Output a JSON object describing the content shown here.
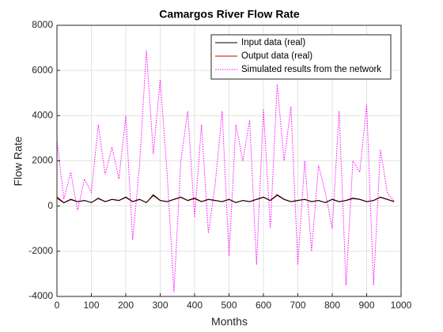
{
  "chart_data": {
    "type": "line",
    "title": "Camargos River Flow Rate",
    "xlabel": "Months",
    "ylabel": "Flow Rate",
    "x": [
      0,
      20,
      40,
      60,
      80,
      100,
      120,
      140,
      160,
      180,
      200,
      220,
      240,
      260,
      280,
      300,
      320,
      340,
      360,
      380,
      400,
      420,
      440,
      460,
      480,
      500,
      520,
      540,
      560,
      580,
      600,
      620,
      640,
      660,
      680,
      700,
      720,
      740,
      760,
      780,
      800,
      820,
      840,
      860,
      880,
      900,
      920,
      940,
      960,
      980
    ],
    "series": [
      {
        "name": "Input data (real)",
        "color": "#000000",
        "linestyle": "solid",
        "values": [
          400,
          150,
          300,
          200,
          250,
          150,
          350,
          200,
          300,
          250,
          400,
          200,
          300,
          150,
          500,
          250,
          200,
          300,
          400,
          250,
          350,
          200,
          300,
          250,
          200,
          300,
          150,
          250,
          200,
          300,
          400,
          250,
          500,
          300,
          200,
          250,
          300,
          200,
          250,
          150,
          300,
          200,
          250,
          350,
          300,
          200,
          250,
          400,
          300,
          200
        ]
      },
      {
        "name": "Output data (real)",
        "color": "#cc0000",
        "linestyle": "solid",
        "values": [
          350,
          140,
          280,
          190,
          240,
          160,
          330,
          190,
          290,
          240,
          380,
          190,
          290,
          160,
          460,
          240,
          190,
          290,
          380,
          240,
          330,
          190,
          290,
          240,
          190,
          290,
          160,
          240,
          190,
          290,
          380,
          240,
          470,
          290,
          190,
          240,
          290,
          190,
          240,
          160,
          290,
          190,
          240,
          330,
          290,
          190,
          240,
          380,
          290,
          190
        ]
      },
      {
        "name": "Simulated results from the network",
        "color": "#ff00ff",
        "linestyle": "dotted",
        "values": [
          2900,
          300,
          1500,
          -200,
          1200,
          600,
          3600,
          1400,
          2600,
          1200,
          4000,
          -1500,
          1800,
          6900,
          2300,
          5600,
          1500,
          -3800,
          2000,
          4200,
          -500,
          3600,
          -1200,
          1000,
          4200,
          -2200,
          3600,
          2000,
          3800,
          -2600,
          4300,
          -1000,
          5400,
          2000,
          4400,
          -2600,
          2000,
          -2000,
          1800,
          600,
          -1000,
          4200,
          -3500,
          2000,
          1500,
          4500,
          -3500,
          2500,
          600,
          200
        ]
      }
    ],
    "xlim": [
      0,
      1000
    ],
    "xticks": [
      0,
      100,
      200,
      300,
      400,
      500,
      600,
      700,
      800,
      900,
      1000
    ],
    "ylim": [
      -4000,
      8000
    ],
    "yticks": [
      -4000,
      -2000,
      0,
      2000,
      4000,
      6000,
      8000
    ],
    "grid": true,
    "legend": "northeast"
  }
}
